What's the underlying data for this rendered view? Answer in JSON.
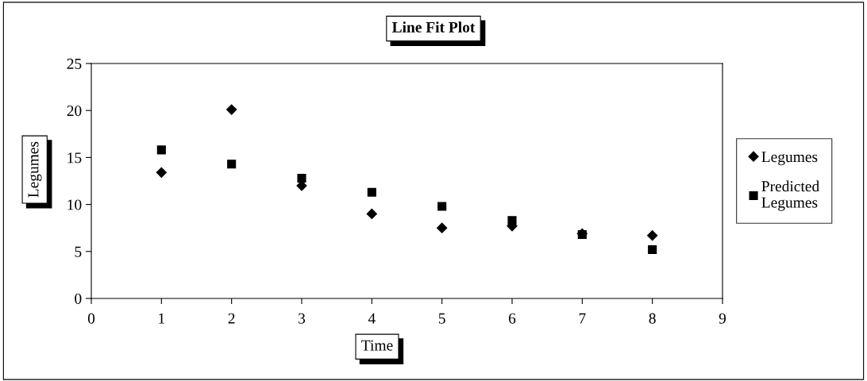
{
  "chart_data": {
    "type": "scatter",
    "title": "Line Fit Plot",
    "xlabel": "Time",
    "ylabel": "Legumes",
    "x": [
      1,
      2,
      3,
      4,
      5,
      6,
      7,
      8
    ],
    "series": [
      {
        "name": "Legumes",
        "color": "#000000",
        "marker": "diamond",
        "values": [
          13.4,
          20.1,
          12.0,
          9.0,
          7.5,
          7.7,
          6.9,
          6.7
        ]
      },
      {
        "name": "Predicted\nLegumes",
        "color": "#000000",
        "marker": "square",
        "values": [
          15.8,
          14.3,
          12.8,
          11.3,
          9.8,
          8.3,
          6.8,
          5.2
        ]
      }
    ],
    "xlim": [
      0,
      9
    ],
    "xticks": [
      0,
      1,
      2,
      3,
      4,
      5,
      6,
      7,
      8,
      9
    ],
    "ylim": [
      0,
      25
    ],
    "yticks": [
      0,
      5,
      10,
      15,
      20,
      25
    ],
    "grid": false,
    "legend": "right"
  }
}
